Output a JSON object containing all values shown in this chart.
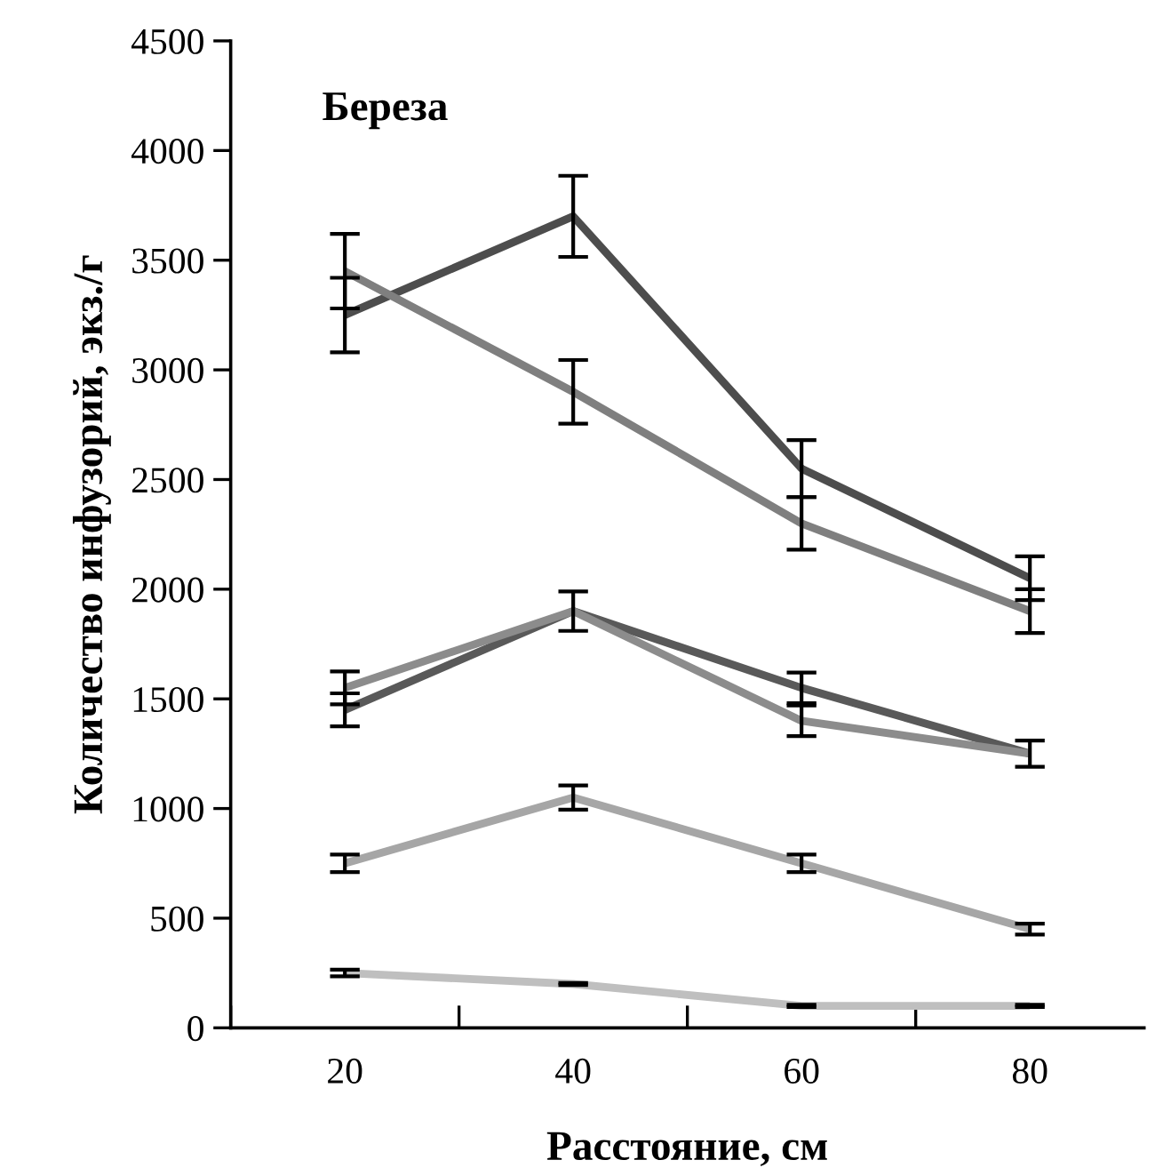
{
  "chart_data": {
    "type": "line",
    "title": "Береза",
    "xlabel": "Расстояние, см",
    "ylabel": "Количество инфузорий, экз./г",
    "categories": [
      "20",
      "40",
      "60",
      "80"
    ],
    "series": [
      {
        "color": "#4d4d4d",
        "values": [
          3250,
          3700,
          2550,
          2050
        ],
        "errors": [
          170,
          185,
          130,
          100
        ]
      },
      {
        "color": "#7f7f7f",
        "values": [
          3450,
          2900,
          2300,
          1900
        ],
        "errors": [
          170,
          145,
          120,
          100
        ]
      },
      {
        "color": "#595959",
        "values": [
          1450,
          1900,
          1550,
          1250
        ],
        "errors": [
          75,
          90,
          70,
          60
        ]
      },
      {
        "color": "#8c8c8c",
        "values": [
          1550,
          1900,
          1400,
          1250
        ],
        "errors": [
          75,
          null,
          70,
          null
        ]
      },
      {
        "color": "#a6a6a6",
        "values": [
          750,
          1050,
          750,
          450
        ],
        "errors": [
          40,
          55,
          40,
          25
        ]
      },
      {
        "color": "#bfbfbf",
        "values": [
          250,
          200,
          100,
          100
        ],
        "errors": [
          15,
          5,
          5,
          5
        ]
      }
    ],
    "ylim": [
      0,
      4500
    ],
    "yticks": [
      0,
      500,
      1000,
      1500,
      2000,
      2500,
      3000,
      3500,
      4000,
      4500
    ],
    "grid": false,
    "legend": false,
    "marker": "none",
    "line_style": "solid"
  }
}
